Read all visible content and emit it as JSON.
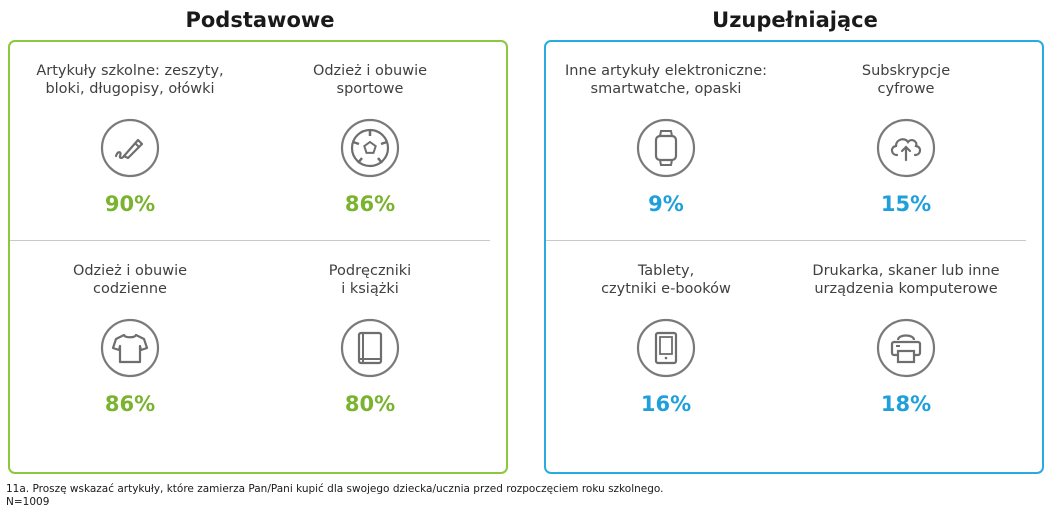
{
  "sections": [
    {
      "title": "Podstawowe",
      "items": [
        {
          "label": "Artykuły szkolne: zeszyty,\nbloki, długopisy, ołówki",
          "value": "90%",
          "icon": "pen-icon"
        },
        {
          "label": "Odzież i obuwie\nsportowe",
          "value": "86%",
          "icon": "soccer-ball-icon"
        },
        {
          "label": "Odzież i obuwie\ncodzienne",
          "value": "86%",
          "icon": "tshirt-icon"
        },
        {
          "label": "Podręczniki\ni książki",
          "value": "80%",
          "icon": "book-icon"
        }
      ]
    },
    {
      "title": "Uzupełniające",
      "items": [
        {
          "label": "Inne artykuły elektroniczne:\nsmartwatche, opaski",
          "value": "9%",
          "icon": "smartwatch-icon"
        },
        {
          "label": "Subskrypcje\ncyfrowe",
          "value": "15%",
          "icon": "cloud-upload-icon"
        },
        {
          "label": "Tablety,\nczytniki e-booków",
          "value": "16%",
          "icon": "tablet-icon"
        },
        {
          "label": "Drukarka, skaner lub inne\nurządzenia komputerowe",
          "value": "18%",
          "icon": "printer-icon"
        }
      ]
    }
  ],
  "chart_data": {
    "type": "table",
    "groups": [
      "Podstawowe",
      "Uzupełniające"
    ],
    "series": [
      {
        "group": "Podstawowe",
        "categories": [
          "Artykuły szkolne: zeszyty, bloki, długopisy, ołówki",
          "Odzież i obuwie sportowe",
          "Odzież i obuwie codzienne",
          "Podręczniki i książki"
        ],
        "values": [
          90,
          86,
          86,
          80
        ]
      },
      {
        "group": "Uzupełniające",
        "categories": [
          "Inne artykuły elektroniczne: smartwatche, opaski",
          "Subskrypcje cyfrowe",
          "Tablety, czytniki e-booków",
          "Drukarka, skaner lub inne urządzenia komputerowe"
        ],
        "values": [
          9,
          15,
          16,
          18
        ]
      }
    ],
    "colors": {
      "Podstawowe": "#7ab32e",
      "Uzupełniające": "#1fa0da"
    }
  },
  "footnote": {
    "question": "11a. Proszę wskazać artykuły, które zamierza Pan/Pani kupić dla swojego dziecka/ucznia przed rozpoczęciem roku szkolnego.",
    "sample": "N=1009"
  }
}
